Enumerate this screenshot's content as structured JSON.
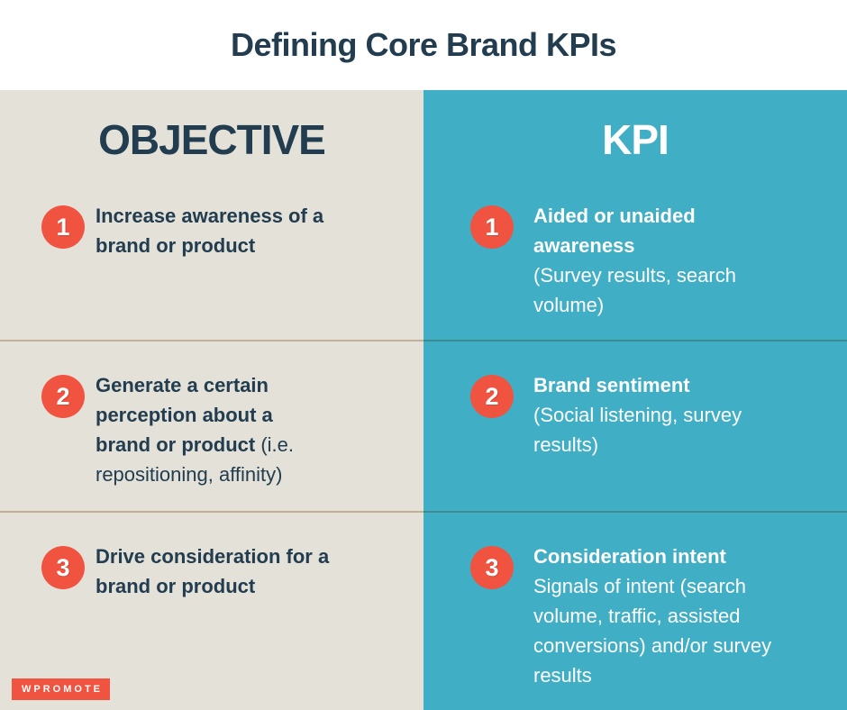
{
  "page": {
    "title": "Defining Core Brand KPIs"
  },
  "columns": {
    "objective": {
      "header": "OBJECTIVE",
      "rows": [
        {
          "num": "1",
          "bold": "Increase awareness of a\nbrand or product",
          "regular": ""
        },
        {
          "num": "2",
          "bold": "Generate a certain\nperception about a\nbrand or product ",
          "regular": "(i.e.\nrepositioning, affinity)"
        },
        {
          "num": "3",
          "bold": "Drive consideration for a\nbrand or product",
          "regular": ""
        }
      ]
    },
    "kpi": {
      "header": "KPI",
      "rows": [
        {
          "num": "1",
          "bold": "Aided or unaided\nawareness",
          "regular": "\n(Survey results, search\nvolume)"
        },
        {
          "num": "2",
          "bold": "Brand sentiment",
          "regular": "\n(Social listening, survey\nresults)"
        },
        {
          "num": "3",
          "bold": "Consideration intent",
          "regular": "\nSignals of intent (search\nvolume, traffic, assisted\nconversions) and/or survey\nresults"
        }
      ]
    }
  },
  "footer": {
    "logo_text": "WPROMOTE"
  },
  "colors": {
    "navy_text": "#223c50",
    "beige_column": "#e4e1d8",
    "teal_column": "#40aec5",
    "badge_red": "#f05340",
    "divider_beige": "#c2b098",
    "divider_teal": "#3e8a8d"
  }
}
